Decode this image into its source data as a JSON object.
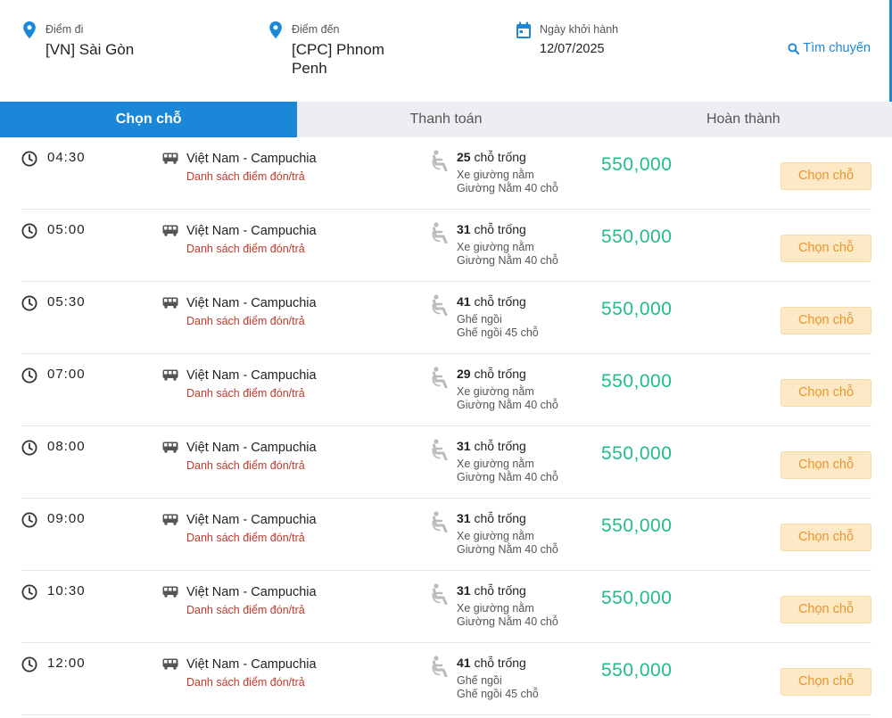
{
  "search": {
    "origin": {
      "label": "Điểm đi",
      "value": "[VN] Sài Gòn"
    },
    "destination": {
      "label": "Điểm đến",
      "value": "[CPC] Phnom Penh"
    },
    "date": {
      "label": "Ngày khởi hành",
      "value": "12/07/2025"
    },
    "search_label": "Tìm chuyến"
  },
  "colors": {
    "accent": "#1b87d8",
    "price": "#1fbc8d",
    "pickup_link": "#c0392b",
    "button_bg": "#fde9c6",
    "button_text": "#e8952a"
  },
  "tabs": [
    {
      "label": "Chọn chỗ",
      "active": true
    },
    {
      "label": "Thanh toán",
      "active": false
    },
    {
      "label": "Hoàn thành",
      "active": false
    }
  ],
  "pickup_label": "Danh sách điểm đón/trả",
  "seats_suffix": " chỗ trống",
  "button_label": "Chọn chỗ",
  "trips": [
    {
      "time": "04:30",
      "route": "Việt Nam - Campuchia",
      "seats": "25",
      "vehicle_type": "Xe giường nằm",
      "vehicle_desc": "Giường Nằm 40 chỗ",
      "price": "550,000"
    },
    {
      "time": "05:00",
      "route": "Việt Nam - Campuchia",
      "seats": "31",
      "vehicle_type": "Xe giường nằm",
      "vehicle_desc": "Giường Nằm 40 chỗ",
      "price": "550,000"
    },
    {
      "time": "05:30",
      "route": "Việt Nam - Campuchia",
      "seats": "41",
      "vehicle_type": "Ghế ngồi",
      "vehicle_desc": "Ghế ngồi 45 chỗ",
      "price": "550,000"
    },
    {
      "time": "07:00",
      "route": "Việt Nam - Campuchia",
      "seats": "29",
      "vehicle_type": "Xe giường nằm",
      "vehicle_desc": "Giường Nằm 40 chỗ",
      "price": "550,000"
    },
    {
      "time": "08:00",
      "route": "Việt Nam - Campuchia",
      "seats": "31",
      "vehicle_type": "Xe giường nằm",
      "vehicle_desc": "Giường Nằm 40 chỗ",
      "price": "550,000"
    },
    {
      "time": "09:00",
      "route": "Việt Nam - Campuchia",
      "seats": "31",
      "vehicle_type": "Xe giường nằm",
      "vehicle_desc": "Giường Nằm 40 chỗ",
      "price": "550,000"
    },
    {
      "time": "10:30",
      "route": "Việt Nam - Campuchia",
      "seats": "31",
      "vehicle_type": "Xe giường nằm",
      "vehicle_desc": "Giường Nằm 40 chỗ",
      "price": "550,000"
    },
    {
      "time": "12:00",
      "route": "Việt Nam - Campuchia",
      "seats": "41",
      "vehicle_type": "Ghế ngồi",
      "vehicle_desc": "Ghế ngồi 45 chỗ",
      "price": "550,000"
    }
  ]
}
